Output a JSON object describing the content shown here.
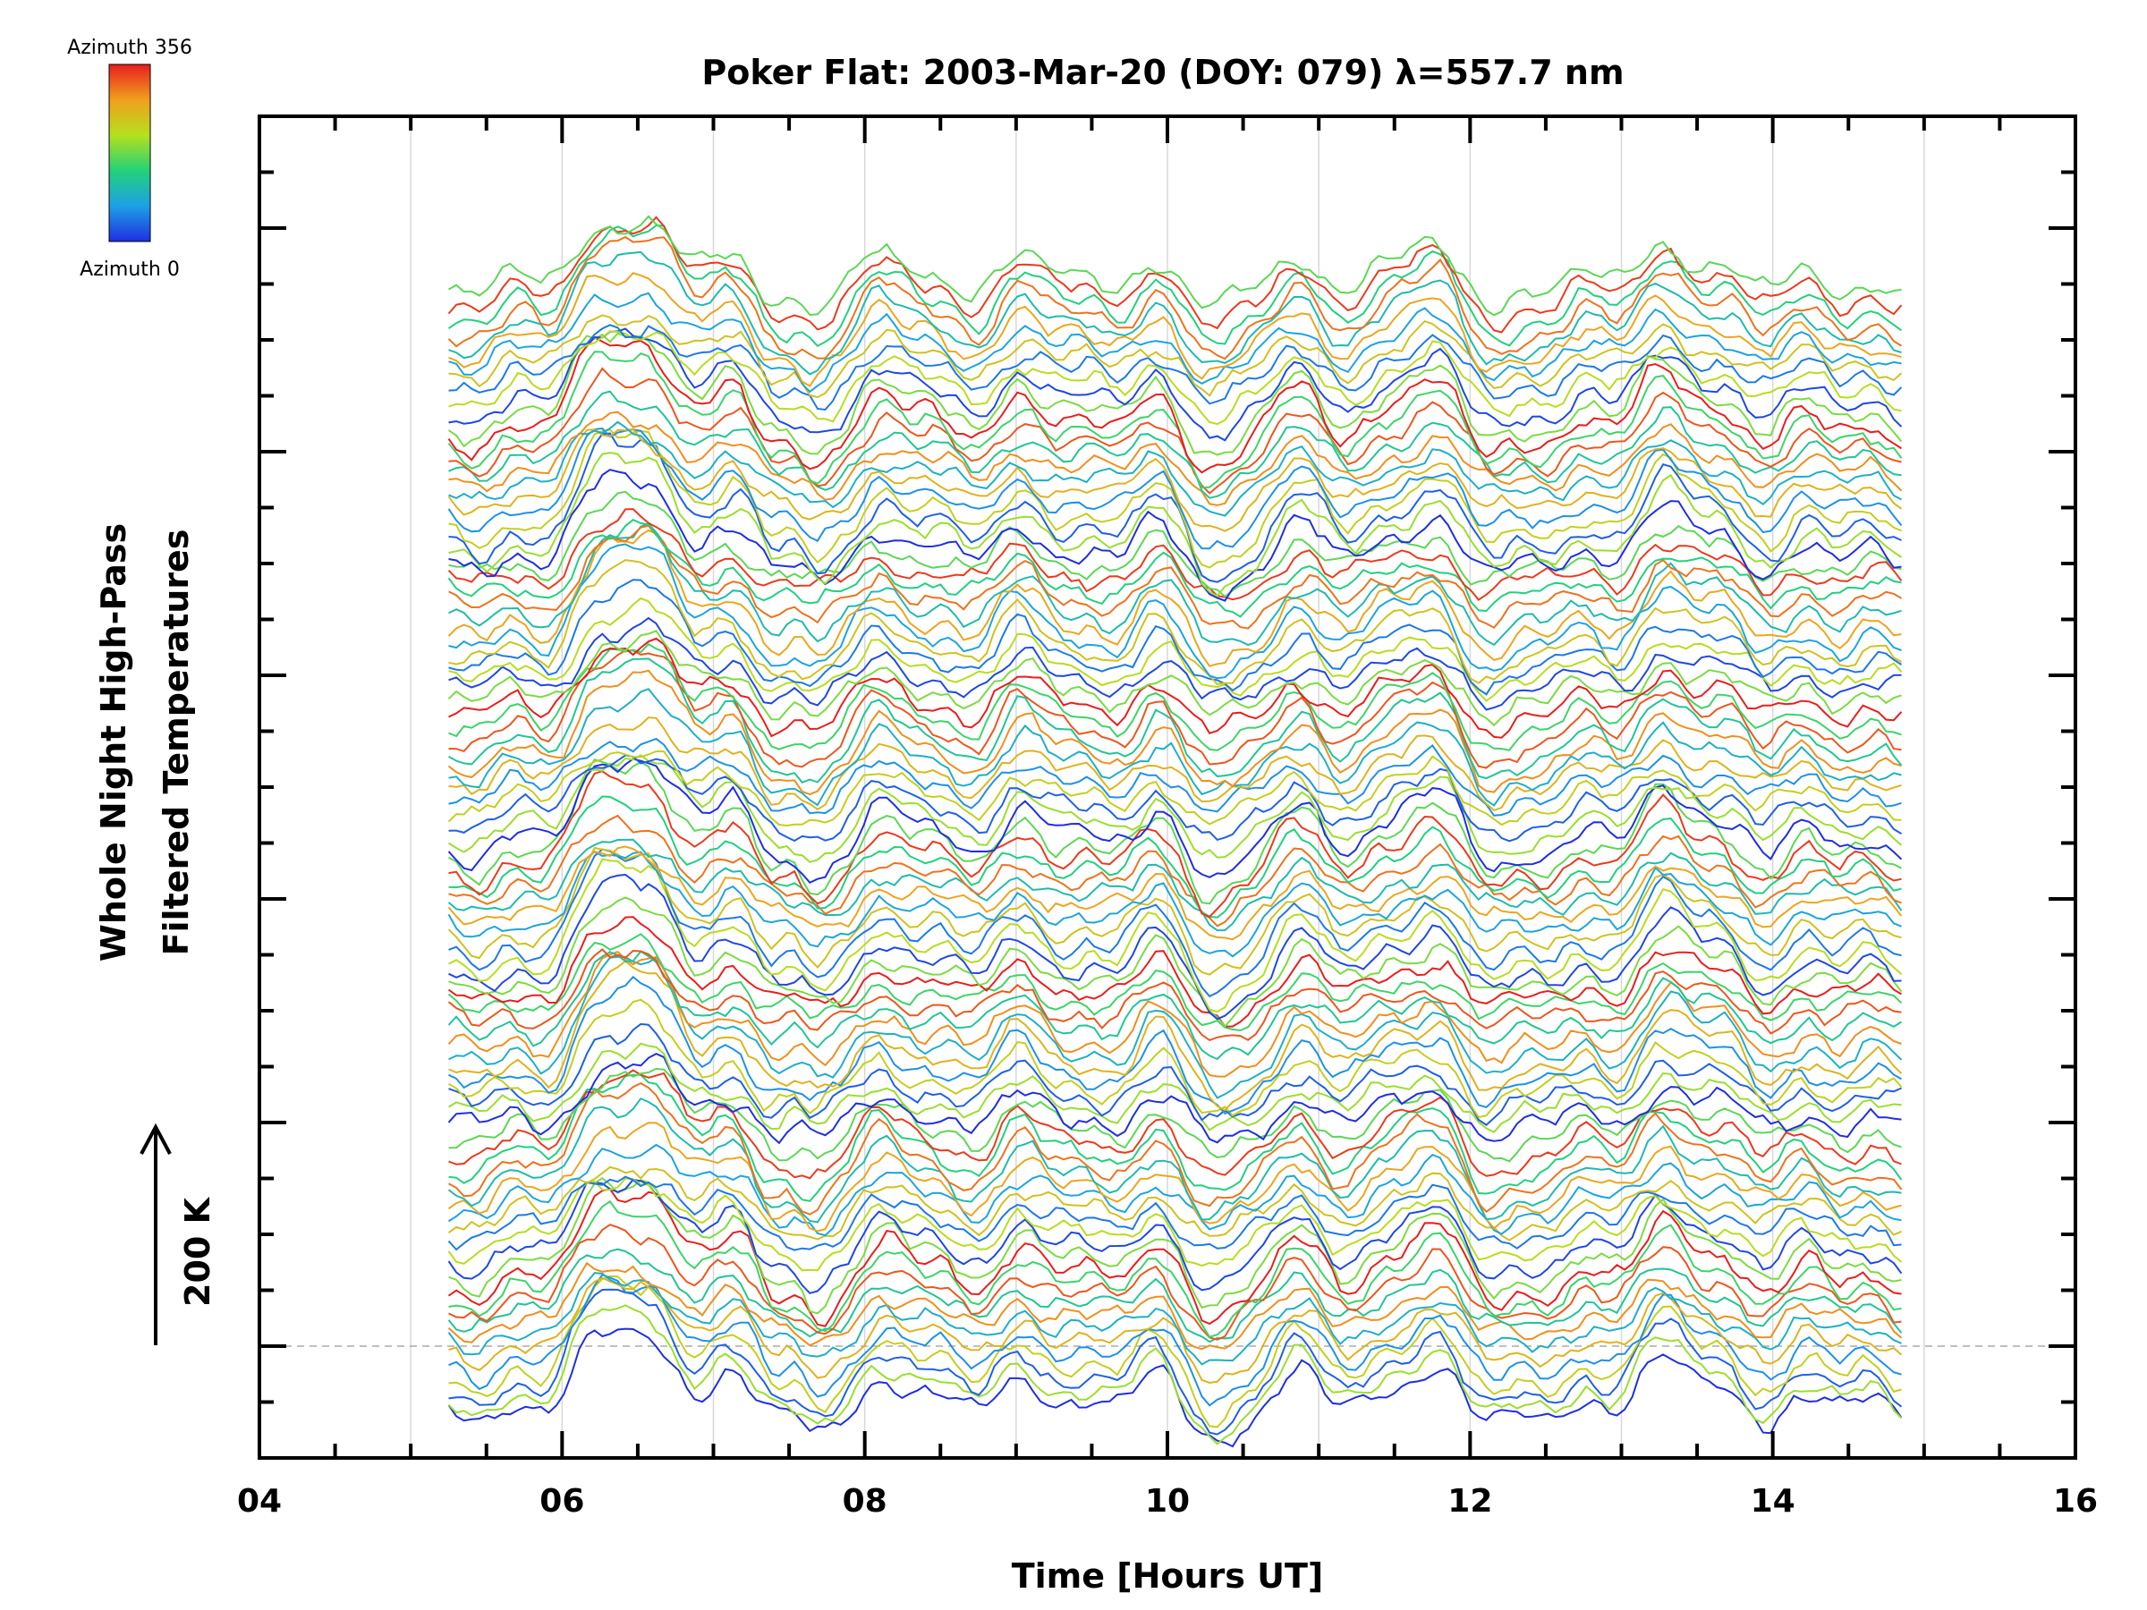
{
  "chart_data": {
    "type": "line",
    "title": "Poker Flat: 2003-Mar-20 (DOY: 079) λ=557.7 nm",
    "xlabel": "Time [Hours UT]",
    "ylabel_line1": "Whole Night High-Pass",
    "ylabel_line2": "Filtered Temperatures",
    "scale_bar_label": "200 K",
    "xlim": [
      4,
      16
    ],
    "x_ticks": [
      "04",
      "06",
      "08",
      "10",
      "12",
      "14",
      "16"
    ],
    "x_range_data": [
      5.25,
      14.85
    ],
    "colorbar": {
      "top_label": "Azimuth 356",
      "bottom_label": "Azimuth 0",
      "range": [
        0,
        356
      ],
      "colors": [
        "#1f2fe0",
        "#1ea0e6",
        "#22d27a",
        "#b5e01e",
        "#f0a01e",
        "#e81e1e"
      ]
    },
    "n_series": 96,
    "grid": "vertical lines at each hour"
  }
}
